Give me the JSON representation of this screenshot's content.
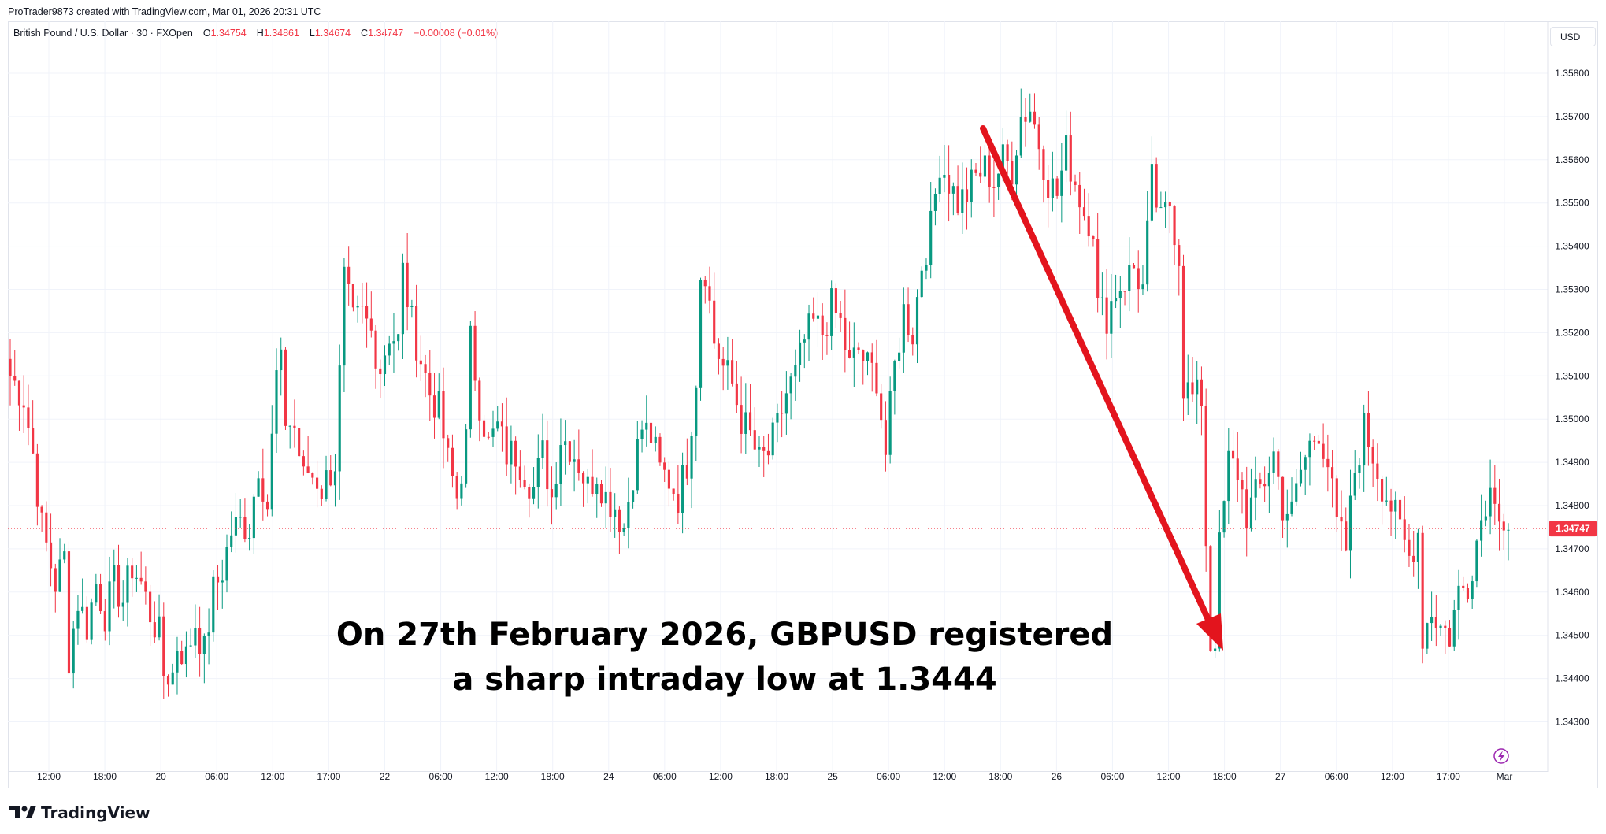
{
  "header": {
    "credit": "ProTrader9873 created with TradingView.com, Mar 01, 2026 20:31 UTC"
  },
  "legend": {
    "symbol": "British Pound / U.S. Dollar · 30 · FXOpen",
    "o_label": "O",
    "o_value": "1.34754",
    "h_label": "H",
    "h_value": "1.34861",
    "l_label": "L",
    "l_value": "1.34674",
    "c_label": "C",
    "c_value": "1.34747",
    "change": "−0.00008 (−0.01%)"
  },
  "currency_button": "USD",
  "annotation": {
    "line1": "On 27th February 2026, GBPUSD registered",
    "line2": "a sharp intraday low at 1.3444"
  },
  "brand": {
    "name": "TradingView"
  },
  "colors": {
    "up": "#089981",
    "down": "#f23645",
    "arrow": "#e3141d",
    "grid": "#f0f3fa",
    "axis_text": "#131722"
  },
  "chart_data": {
    "type": "candlestick",
    "instrument": "GBPUSD",
    "timeframe": "30",
    "ylim": [
      1.3425,
      1.359
    ],
    "y_ticks": [
      "1.34300",
      "1.34400",
      "1.34500",
      "1.34600",
      "1.34700",
      "1.34800",
      "1.34900",
      "1.35000",
      "1.35100",
      "1.35200",
      "1.35300",
      "1.35400",
      "1.35500",
      "1.35600",
      "1.35700",
      "1.35800"
    ],
    "x_ticks": [
      "12:00",
      "18:00",
      "20",
      "06:00",
      "12:00",
      "17:00",
      "22",
      "06:00",
      "12:00",
      "18:00",
      "24",
      "06:00",
      "12:00",
      "18:00",
      "25",
      "06:00",
      "12:00",
      "18:00",
      "26",
      "06:00",
      "12:00",
      "18:00",
      "27",
      "06:00",
      "12:00",
      "17:00",
      "Mar"
    ],
    "last_price": "1.34747",
    "waypoints": [
      [
        0,
        1.351
      ],
      [
        3,
        1.3505
      ],
      [
        5,
        1.3492
      ],
      [
        7,
        1.3475
      ],
      [
        10,
        1.3462
      ],
      [
        12,
        1.3468
      ],
      [
        13,
        1.3445
      ],
      [
        15,
        1.3458
      ],
      [
        17,
        1.3452
      ],
      [
        19,
        1.3462
      ],
      [
        21,
        1.3455
      ],
      [
        23,
        1.3462
      ],
      [
        25,
        1.3458
      ],
      [
        27,
        1.3466
      ],
      [
        29,
        1.3462
      ],
      [
        31,
        1.3455
      ],
      [
        33,
        1.345
      ],
      [
        34,
        1.3441
      ],
      [
        36,
        1.3441
      ],
      [
        37,
        1.3448
      ],
      [
        39,
        1.3445
      ],
      [
        41,
        1.3453
      ],
      [
        43,
        1.3446
      ],
      [
        45,
        1.346
      ],
      [
        47,
        1.3465
      ],
      [
        49,
        1.3474
      ],
      [
        51,
        1.3476
      ],
      [
        53,
        1.3475
      ],
      [
        55,
        1.349
      ],
      [
        57,
        1.348
      ],
      [
        59,
        1.351
      ],
      [
        60,
        1.3512
      ],
      [
        61,
        1.35
      ],
      [
        63,
        1.3498
      ],
      [
        65,
        1.3486
      ],
      [
        66,
        1.3488
      ],
      [
        68,
        1.3486
      ],
      [
        69,
        1.3484
      ],
      [
        71,
        1.3488
      ],
      [
        72,
        1.349
      ],
      [
        73,
        1.351
      ],
      [
        74,
        1.3532
      ],
      [
        76,
        1.3522
      ],
      [
        78,
        1.3524
      ],
      [
        80,
        1.352
      ],
      [
        82,
        1.3512
      ],
      [
        84,
        1.352
      ],
      [
        86,
        1.3518
      ],
      [
        87,
        1.3534
      ],
      [
        89,
        1.3522
      ],
      [
        91,
        1.3514
      ],
      [
        93,
        1.3506
      ],
      [
        95,
        1.3502
      ],
      [
        97,
        1.349
      ],
      [
        99,
        1.3482
      ],
      [
        101,
        1.3495
      ],
      [
        102,
        1.3518
      ],
      [
        104,
        1.3504
      ],
      [
        106,
        1.3494
      ],
      [
        108,
        1.3498
      ],
      [
        110,
        1.3492
      ],
      [
        112,
        1.3492
      ],
      [
        114,
        1.3488
      ],
      [
        116,
        1.3484
      ],
      [
        118,
        1.3492
      ],
      [
        120,
        1.3482
      ],
      [
        122,
        1.3496
      ],
      [
        124,
        1.3494
      ],
      [
        126,
        1.349
      ],
      [
        128,
        1.3484
      ],
      [
        130,
        1.3488
      ],
      [
        132,
        1.3482
      ],
      [
        134,
        1.348
      ],
      [
        136,
        1.3475
      ],
      [
        138,
        1.3488
      ],
      [
        140,
        1.3498
      ],
      [
        142,
        1.3496
      ],
      [
        144,
        1.3488
      ],
      [
        146,
        1.3486
      ],
      [
        148,
        1.3482
      ],
      [
        150,
        1.349
      ],
      [
        152,
        1.351
      ],
      [
        153,
        1.3534
      ],
      [
        154,
        1.3535
      ],
      [
        156,
        1.3518
      ],
      [
        158,
        1.3512
      ],
      [
        160,
        1.3508
      ],
      [
        162,
        1.35
      ],
      [
        164,
        1.3496
      ],
      [
        166,
        1.349
      ],
      [
        168,
        1.3492
      ],
      [
        170,
        1.3498
      ],
      [
        172,
        1.3506
      ],
      [
        174,
        1.351
      ],
      [
        176,
        1.3518
      ],
      [
        178,
        1.3522
      ],
      [
        180,
        1.352
      ],
      [
        182,
        1.3526
      ],
      [
        184,
        1.3522
      ],
      [
        186,
        1.3512
      ],
      [
        188,
        1.3516
      ],
      [
        190,
        1.3512
      ],
      [
        192,
        1.351
      ],
      [
        194,
        1.3492
      ],
      [
        196,
        1.3512
      ],
      [
        198,
        1.3525
      ],
      [
        200,
        1.352
      ],
      [
        202,
        1.3536
      ],
      [
        204,
        1.3544
      ],
      [
        206,
        1.356
      ],
      [
        208,
        1.3555
      ],
      [
        210,
        1.355
      ],
      [
        212,
        1.3552
      ],
      [
        214,
        1.3556
      ],
      [
        216,
        1.3558
      ],
      [
        218,
        1.3555
      ],
      [
        220,
        1.356
      ],
      [
        222,
        1.3558
      ],
      [
        224,
        1.357
      ],
      [
        226,
        1.3572
      ],
      [
        228,
        1.3564
      ],
      [
        230,
        1.3555
      ],
      [
        232,
        1.3552
      ],
      [
        234,
        1.3562
      ],
      [
        236,
        1.3555
      ],
      [
        238,
        1.3548
      ],
      [
        240,
        1.3545
      ],
      [
        241,
        1.3526
      ],
      [
        243,
        1.3524
      ],
      [
        245,
        1.353
      ],
      [
        247,
        1.3532
      ],
      [
        249,
        1.3535
      ],
      [
        251,
        1.353
      ],
      [
        253,
        1.3555
      ],
      [
        255,
        1.3545
      ],
      [
        257,
        1.355
      ],
      [
        259,
        1.3538
      ],
      [
        260,
        1.3508
      ],
      [
        262,
        1.3505
      ],
      [
        264,
        1.3505
      ],
      [
        265,
        1.3472
      ],
      [
        266,
        1.3448
      ],
      [
        267,
        1.345
      ],
      [
        268,
        1.347
      ],
      [
        270,
        1.349
      ],
      [
        272,
        1.3488
      ],
      [
        274,
        1.3478
      ],
      [
        276,
        1.3482
      ],
      [
        278,
        1.3486
      ],
      [
        280,
        1.3492
      ],
      [
        282,
        1.348
      ],
      [
        284,
        1.3478
      ],
      [
        286,
        1.3488
      ],
      [
        288,
        1.3494
      ],
      [
        290,
        1.3498
      ],
      [
        292,
        1.349
      ],
      [
        294,
        1.3475
      ],
      [
        296,
        1.347
      ],
      [
        298,
        1.3488
      ],
      [
        300,
        1.3498
      ],
      [
        302,
        1.3492
      ],
      [
        304,
        1.3485
      ],
      [
        306,
        1.348
      ],
      [
        308,
        1.3474
      ],
      [
        310,
        1.3468
      ],
      [
        312,
        1.3474
      ],
      [
        313,
        1.345
      ],
      [
        315,
        1.3456
      ],
      [
        317,
        1.3452
      ],
      [
        319,
        1.345
      ],
      [
        321,
        1.346
      ],
      [
        323,
        1.3462
      ],
      [
        325,
        1.3472
      ],
      [
        327,
        1.3482
      ],
      [
        329,
        1.3484
      ],
      [
        331,
        1.3476
      ],
      [
        332,
        1.3475
      ]
    ]
  }
}
